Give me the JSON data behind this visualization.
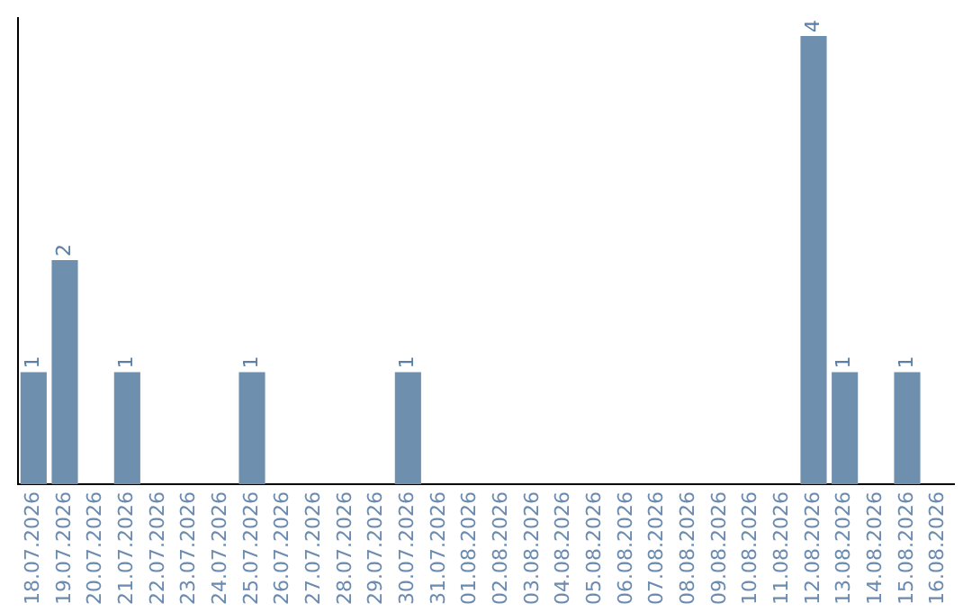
{
  "chart_data": {
    "type": "bar",
    "categories": [
      "18.07.2026",
      "19.07.2026",
      "20.07.2026",
      "21.07.2026",
      "22.07.2026",
      "23.07.2026",
      "24.07.2026",
      "25.07.2026",
      "26.07.2026",
      "27.07.2026",
      "28.07.2026",
      "29.07.2026",
      "30.07.2026",
      "31.07.2026",
      "01.08.2026",
      "02.08.2026",
      "03.08.2026",
      "04.08.2026",
      "05.08.2026",
      "06.08.2026",
      "07.08.2026",
      "08.08.2026",
      "09.08.2026",
      "10.08.2026",
      "11.08.2026",
      "12.08.2026",
      "13.08.2026",
      "14.08.2026",
      "15.08.2026",
      "16.08.2026"
    ],
    "values": [
      1,
      2,
      0,
      1,
      0,
      0,
      0,
      1,
      0,
      0,
      0,
      0,
      1,
      0,
      0,
      0,
      0,
      0,
      0,
      0,
      0,
      0,
      0,
      0,
      0,
      4,
      1,
      0,
      1,
      0
    ],
    "value_labels": [
      "1",
      "2",
      null,
      "1",
      null,
      null,
      null,
      "1",
      null,
      null,
      null,
      null,
      "1",
      null,
      null,
      null,
      null,
      null,
      null,
      null,
      null,
      null,
      null,
      null,
      null,
      "4",
      "1",
      null,
      "1",
      null
    ],
    "color": "#6f8fae",
    "ylim": [
      0,
      4.16
    ],
    "tick_labels": "x",
    "grid": false,
    "legend": false
  }
}
